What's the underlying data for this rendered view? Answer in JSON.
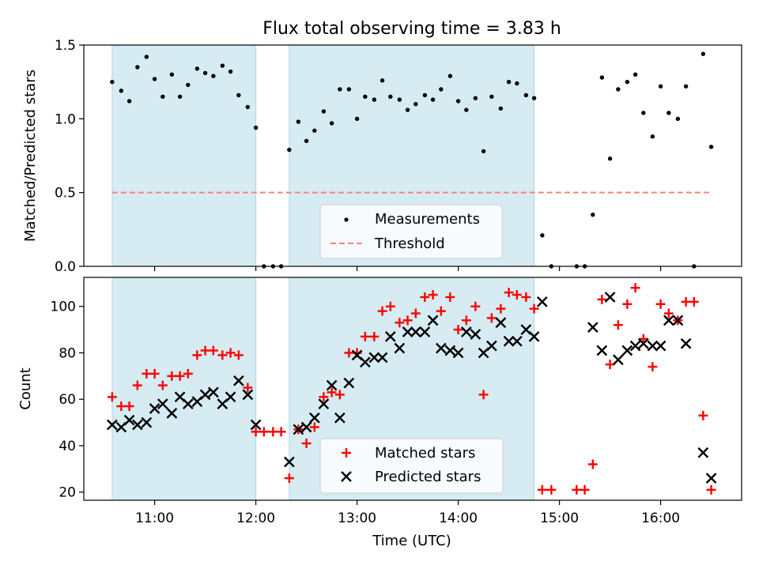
{
  "colors": {
    "shade": "#add8e6",
    "threshold": "#ff7f7f",
    "matched": "#ff0000",
    "predicted": "#000000",
    "measurement": "#000000"
  },
  "chart_data": [
    {
      "type": "scatter",
      "title": "Flux total observing time = 3.83 h",
      "ylabel": "Matched/Predicted stars",
      "xlabel": "",
      "xlim": [
        10.3,
        16.8
      ],
      "ylim": [
        0,
        1.5
      ],
      "yticks": [
        0.0,
        0.5,
        1.0,
        1.5
      ],
      "ytick_labels": [
        "0.0",
        "0.5",
        "1.0",
        "1.5"
      ],
      "shaded_intervals": [
        [
          10.58,
          12.0
        ],
        [
          12.33,
          14.75
        ]
      ],
      "threshold": {
        "label": "Threshold",
        "value": 0.5,
        "x_range": [
          10.58,
          16.5
        ]
      },
      "legend": {
        "position": "bottom-center",
        "entries": [
          "Measurements",
          "Threshold"
        ]
      },
      "series": [
        {
          "name": "Measurements",
          "points": [
            [
              10.58,
              1.25
            ],
            [
              10.67,
              1.19
            ],
            [
              10.75,
              1.12
            ],
            [
              10.83,
              1.35
            ],
            [
              10.92,
              1.42
            ],
            [
              11.0,
              1.27
            ],
            [
              11.08,
              1.15
            ],
            [
              11.17,
              1.3
            ],
            [
              11.25,
              1.15
            ],
            [
              11.33,
              1.23
            ],
            [
              11.42,
              1.34
            ],
            [
              11.5,
              1.31
            ],
            [
              11.58,
              1.29
            ],
            [
              11.67,
              1.36
            ],
            [
              11.75,
              1.32
            ],
            [
              11.83,
              1.16
            ],
            [
              11.92,
              1.08
            ],
            [
              12.0,
              0.94
            ],
            [
              12.08,
              0.0
            ],
            [
              12.17,
              0.0
            ],
            [
              12.25,
              0.0
            ],
            [
              12.33,
              0.79
            ],
            [
              12.42,
              0.98
            ],
            [
              12.5,
              0.85
            ],
            [
              12.58,
              0.92
            ],
            [
              12.67,
              1.05
            ],
            [
              12.75,
              0.97
            ],
            [
              12.83,
              1.2
            ],
            [
              12.92,
              1.2
            ],
            [
              13.0,
              1.0
            ],
            [
              13.08,
              1.15
            ],
            [
              13.17,
              1.13
            ],
            [
              13.25,
              1.26
            ],
            [
              13.33,
              1.15
            ],
            [
              13.42,
              1.13
            ],
            [
              13.5,
              1.06
            ],
            [
              13.58,
              1.1
            ],
            [
              13.67,
              1.16
            ],
            [
              13.75,
              1.13
            ],
            [
              13.83,
              1.2
            ],
            [
              13.92,
              1.29
            ],
            [
              14.0,
              1.12
            ],
            [
              14.08,
              1.06
            ],
            [
              14.17,
              1.14
            ],
            [
              14.25,
              0.78
            ],
            [
              14.33,
              1.15
            ],
            [
              14.42,
              1.07
            ],
            [
              14.5,
              1.25
            ],
            [
              14.58,
              1.24
            ],
            [
              14.67,
              1.16
            ],
            [
              14.75,
              1.14
            ],
            [
              14.83,
              0.21
            ],
            [
              14.92,
              0.0
            ],
            [
              15.17,
              0.0
            ],
            [
              15.25,
              0.0
            ],
            [
              15.33,
              0.35
            ],
            [
              15.42,
              1.28
            ],
            [
              15.5,
              0.73
            ],
            [
              15.58,
              1.2
            ],
            [
              15.67,
              1.25
            ],
            [
              15.75,
              1.3
            ],
            [
              15.83,
              1.04
            ],
            [
              15.92,
              0.88
            ],
            [
              16.0,
              1.22
            ],
            [
              16.08,
              1.04
            ],
            [
              16.17,
              1.0
            ],
            [
              16.25,
              1.22
            ],
            [
              16.33,
              0.0
            ],
            [
              16.42,
              1.44
            ],
            [
              16.5,
              0.81
            ]
          ]
        }
      ]
    },
    {
      "type": "scatter",
      "title": "",
      "ylabel": "Count",
      "xlabel": "Time (UTC)",
      "xlim": [
        10.3,
        16.8
      ],
      "ylim": [
        16.5,
        112.5
      ],
      "yticks": [
        20,
        40,
        60,
        80,
        100
      ],
      "ytick_labels": [
        "20",
        "40",
        "60",
        "80",
        "100"
      ],
      "xticks": [
        11,
        12,
        13,
        14,
        15,
        16
      ],
      "xtick_labels": [
        "11:00",
        "12:00",
        "13:00",
        "14:00",
        "15:00",
        "16:00"
      ],
      "shaded_intervals": [
        [
          10.58,
          12.0
        ],
        [
          12.33,
          14.75
        ]
      ],
      "legend": {
        "position": "bottom-center",
        "entries": [
          "Matched stars",
          "Predicted stars"
        ]
      },
      "series": [
        {
          "name": "Matched stars",
          "marker": "plus",
          "points": [
            [
              10.58,
              61
            ],
            [
              10.67,
              57
            ],
            [
              10.75,
              57
            ],
            [
              10.83,
              66
            ],
            [
              10.92,
              71
            ],
            [
              11.0,
              71
            ],
            [
              11.08,
              66
            ],
            [
              11.17,
              70
            ],
            [
              11.25,
              70
            ],
            [
              11.33,
              71
            ],
            [
              11.42,
              79
            ],
            [
              11.5,
              81
            ],
            [
              11.58,
              81
            ],
            [
              11.67,
              79
            ],
            [
              11.75,
              80
            ],
            [
              11.83,
              79
            ],
            [
              11.92,
              65
            ],
            [
              12.0,
              46
            ],
            [
              12.08,
              46
            ],
            [
              12.17,
              46
            ],
            [
              12.25,
              46
            ],
            [
              12.33,
              26
            ],
            [
              12.42,
              47
            ],
            [
              12.5,
              41
            ],
            [
              12.58,
              48
            ],
            [
              12.67,
              61
            ],
            [
              12.75,
              63
            ],
            [
              12.83,
              62
            ],
            [
              12.92,
              80
            ],
            [
              13.0,
              80
            ],
            [
              13.08,
              87
            ],
            [
              13.17,
              87
            ],
            [
              13.25,
              98
            ],
            [
              13.33,
              100
            ],
            [
              13.42,
              93
            ],
            [
              13.5,
              94
            ],
            [
              13.58,
              97
            ],
            [
              13.67,
              104
            ],
            [
              13.75,
              105
            ],
            [
              13.83,
              98
            ],
            [
              13.92,
              104
            ],
            [
              14.0,
              90
            ],
            [
              14.08,
              94
            ],
            [
              14.17,
              100
            ],
            [
              14.25,
              62
            ],
            [
              14.33,
              95
            ],
            [
              14.42,
              99
            ],
            [
              14.5,
              106
            ],
            [
              14.58,
              105
            ],
            [
              14.67,
              104
            ],
            [
              14.75,
              99
            ],
            [
              14.83,
              21
            ],
            [
              14.92,
              21
            ],
            [
              15.17,
              21
            ],
            [
              15.25,
              21
            ],
            [
              15.33,
              32
            ],
            [
              15.42,
              103
            ],
            [
              15.5,
              75
            ],
            [
              15.58,
              92
            ],
            [
              15.67,
              101
            ],
            [
              15.75,
              108
            ],
            [
              15.83,
              86
            ],
            [
              15.92,
              74
            ],
            [
              16.0,
              101
            ],
            [
              16.08,
              97
            ],
            [
              16.17,
              94
            ],
            [
              16.25,
              102
            ],
            [
              16.33,
              102
            ],
            [
              16.42,
              53
            ],
            [
              16.5,
              21
            ]
          ]
        },
        {
          "name": "Predicted stars",
          "marker": "x",
          "points": [
            [
              10.58,
              49
            ],
            [
              10.67,
              48
            ],
            [
              10.75,
              51
            ],
            [
              10.83,
              49
            ],
            [
              10.92,
              50
            ],
            [
              11.0,
              56
            ],
            [
              11.08,
              58
            ],
            [
              11.17,
              54
            ],
            [
              11.25,
              61
            ],
            [
              11.33,
              58
            ],
            [
              11.42,
              59
            ],
            [
              11.5,
              62
            ],
            [
              11.58,
              63
            ],
            [
              11.67,
              58
            ],
            [
              11.75,
              61
            ],
            [
              11.83,
              68
            ],
            [
              11.92,
              62
            ],
            [
              12.0,
              49
            ],
            [
              12.33,
              33
            ],
            [
              12.42,
              47
            ],
            [
              12.5,
              48
            ],
            [
              12.58,
              52
            ],
            [
              12.67,
              58
            ],
            [
              12.75,
              66
            ],
            [
              12.83,
              52
            ],
            [
              12.92,
              67
            ],
            [
              13.0,
              79
            ],
            [
              13.08,
              76
            ],
            [
              13.17,
              78
            ],
            [
              13.25,
              78
            ],
            [
              13.33,
              87
            ],
            [
              13.42,
              82
            ],
            [
              13.5,
              89
            ],
            [
              13.58,
              89
            ],
            [
              13.67,
              89
            ],
            [
              13.75,
              94
            ],
            [
              13.83,
              82
            ],
            [
              13.92,
              81
            ],
            [
              14.0,
              80
            ],
            [
              14.08,
              89
            ],
            [
              14.17,
              88
            ],
            [
              14.25,
              80
            ],
            [
              14.33,
              83
            ],
            [
              14.42,
              93
            ],
            [
              14.5,
              85
            ],
            [
              14.58,
              85
            ],
            [
              14.67,
              90
            ],
            [
              14.75,
              87
            ],
            [
              14.83,
              102
            ],
            [
              15.33,
              91
            ],
            [
              15.42,
              81
            ],
            [
              15.5,
              104
            ],
            [
              15.58,
              77
            ],
            [
              15.67,
              81
            ],
            [
              15.75,
              83
            ],
            [
              15.83,
              84
            ],
            [
              15.92,
              83
            ],
            [
              16.0,
              83
            ],
            [
              16.08,
              94
            ],
            [
              16.17,
              94
            ],
            [
              16.25,
              84
            ],
            [
              16.42,
              37
            ],
            [
              16.5,
              26
            ]
          ]
        }
      ]
    }
  ]
}
